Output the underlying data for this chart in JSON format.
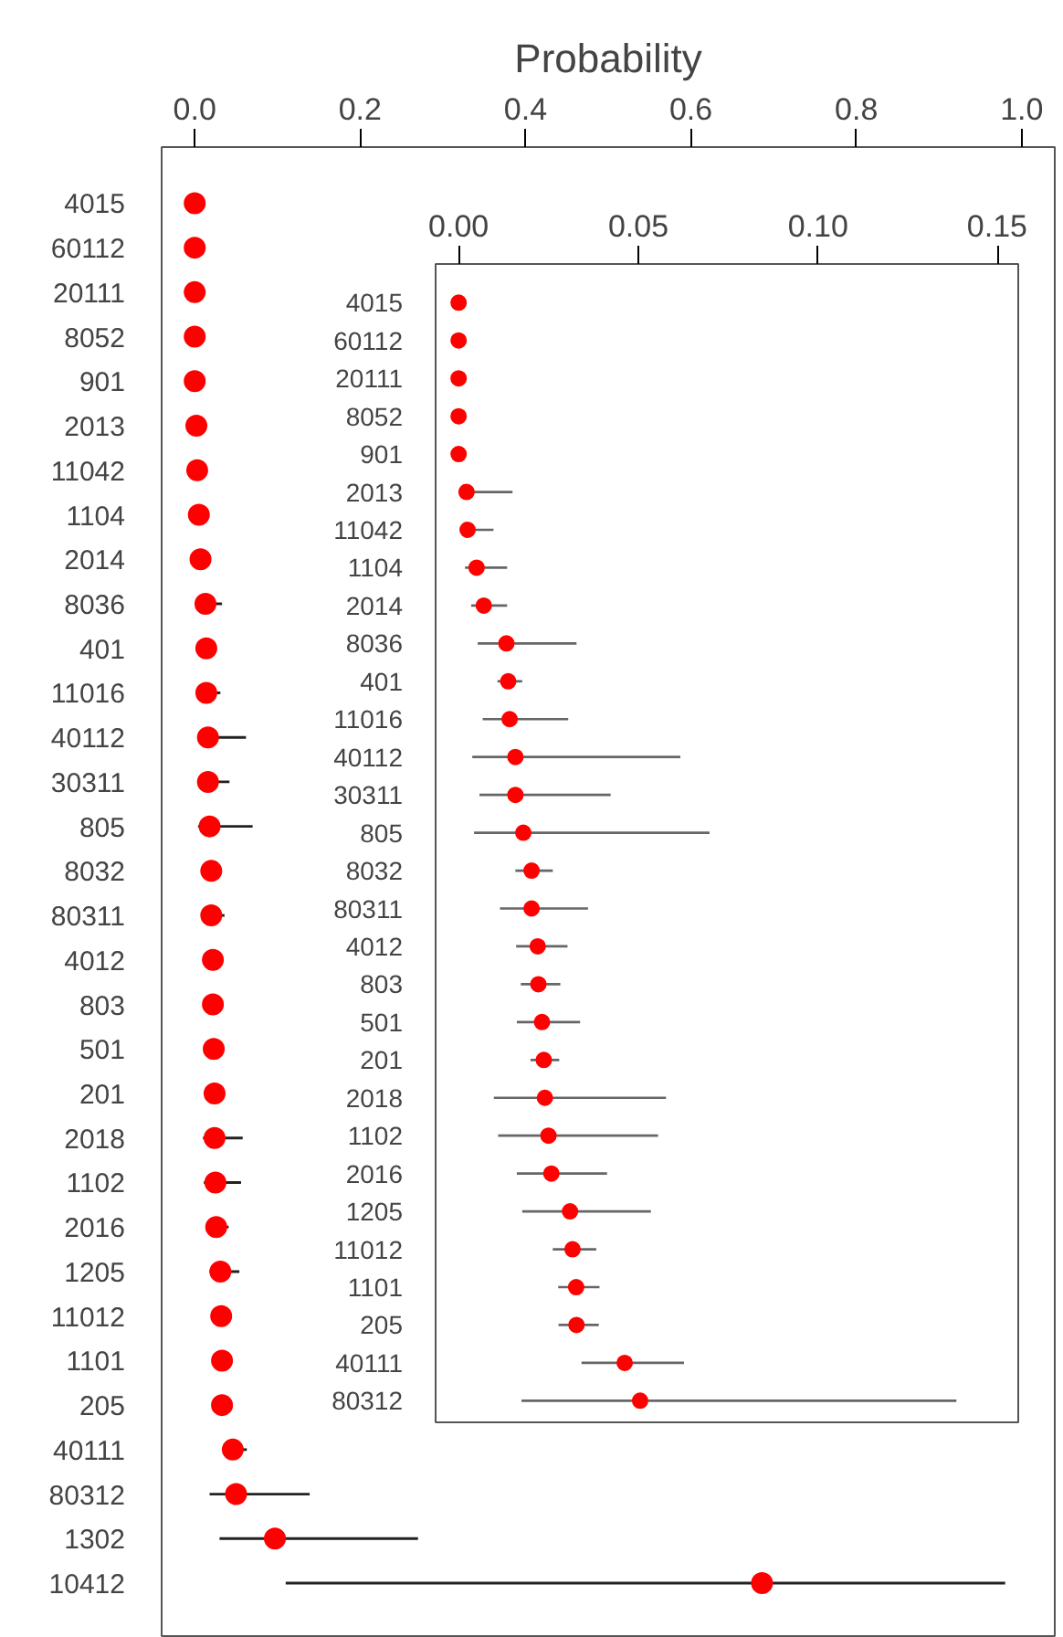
{
  "chart_data": [
    {
      "type": "scatter",
      "orientation": "horizontal",
      "xlabel": "Probability",
      "marker": "circle",
      "grid": false,
      "categories": [
        "4015",
        "60112",
        "20111",
        "8052",
        "901",
        "2013",
        "11042",
        "1104",
        "2014",
        "8036",
        "401",
        "11016",
        "40112",
        "30311",
        "805",
        "8032",
        "80311",
        "4012",
        "803",
        "501",
        "201",
        "2018",
        "1102",
        "2016",
        "1205",
        "11012",
        "1101",
        "205",
        "40111",
        "80312",
        "1302",
        "10412"
      ],
      "series": [
        {
          "color": "#ff0000",
          "values": [
            0,
            0,
            0,
            0,
            0,
            0.002,
            0.003,
            0.005,
            0.007,
            0.013,
            0.014,
            0.014,
            0.016,
            0.016,
            0.018,
            0.02,
            0.02,
            0.022,
            0.022,
            0.023,
            0.024,
            0.024,
            0.025,
            0.026,
            0.031,
            0.032,
            0.033,
            0.033,
            0.046,
            0.05,
            0.097,
            0.686
          ],
          "errors": [
            null,
            null,
            null,
            null,
            null,
            null,
            null,
            null,
            null,
            [
              0.005,
              0.033
            ],
            null,
            [
              0.007,
              0.031
            ],
            [
              0.004,
              0.062
            ],
            [
              0.006,
              0.042
            ],
            [
              0.004,
              0.07
            ],
            null,
            [
              0.012,
              0.036
            ],
            null,
            null,
            null,
            null,
            [
              0.01,
              0.058
            ],
            [
              0.011,
              0.056
            ],
            [
              0.016,
              0.041
            ],
            [
              0.018,
              0.054
            ],
            null,
            null,
            null,
            [
              0.034,
              0.063
            ],
            [
              0.018,
              0.139
            ],
            [
              0.03,
              0.27
            ],
            [
              0.11,
              0.98
            ]
          ]
        }
      ],
      "xlim": [
        -0.04,
        1.04
      ],
      "xticks": [
        {
          "value": 0,
          "label": "0.0"
        },
        {
          "value": 0.2,
          "label": "0.2"
        },
        {
          "value": 0.4,
          "label": "0.4"
        },
        {
          "value": 0.6,
          "label": "0.6"
        },
        {
          "value": 0.8,
          "label": "0.8"
        },
        {
          "value": 1,
          "label": "1.0"
        }
      ]
    },
    {
      "type": "scatter",
      "orientation": "horizontal",
      "marker": "circle",
      "grid": false,
      "categories": [
        "4015",
        "60112",
        "20111",
        "8052",
        "901",
        "2013",
        "11042",
        "1104",
        "2014",
        "8036",
        "401",
        "11016",
        "40112",
        "30311",
        "805",
        "8032",
        "80311",
        "4012",
        "803",
        "501",
        "201",
        "2018",
        "1102",
        "2016",
        "1205",
        "11012",
        "1101",
        "205",
        "40111",
        "80312"
      ],
      "series": [
        {
          "color": "#ff0000",
          "values": [
            0,
            0,
            0,
            0,
            0,
            0.0022,
            0.0025,
            0.005,
            0.007,
            0.0133,
            0.0138,
            0.0142,
            0.0158,
            0.0158,
            0.018,
            0.0203,
            0.0203,
            0.022,
            0.0222,
            0.0232,
            0.0237,
            0.024,
            0.025,
            0.0258,
            0.031,
            0.0317,
            0.0327,
            0.0328,
            0.0462,
            0.0505
          ],
          "errors": [
            null,
            null,
            null,
            null,
            null,
            [
              0.0005,
              0.015
            ],
            [
              0.0008,
              0.0097
            ],
            [
              0.0018,
              0.0135
            ],
            [
              0.0035,
              0.0135
            ],
            [
              0.0053,
              0.0328
            ],
            [
              0.0108,
              0.0177
            ],
            [
              0.0067,
              0.0305
            ],
            [
              0.0038,
              0.0617
            ],
            [
              0.0058,
              0.0423
            ],
            [
              0.0043,
              0.0698
            ],
            [
              0.0158,
              0.0262
            ],
            [
              0.0115,
              0.036
            ],
            [
              0.016,
              0.0303
            ],
            [
              0.0173,
              0.0283
            ],
            [
              0.0162,
              0.0338
            ],
            [
              0.02,
              0.028
            ],
            [
              0.0098,
              0.0577
            ],
            [
              0.011,
              0.0555
            ],
            [
              0.0162,
              0.0413
            ],
            [
              0.0177,
              0.0535
            ],
            [
              0.0262,
              0.0383
            ],
            [
              0.0277,
              0.0392
            ],
            [
              0.0278,
              0.039
            ],
            [
              0.0342,
              0.0627
            ],
            [
              0.0175,
              0.1385
            ]
          ]
        }
      ],
      "xlim": [
        -0.0064,
        0.1557
      ],
      "xticks": [
        {
          "value": 0,
          "label": "0.00"
        },
        {
          "value": 0.05,
          "label": "0.05"
        },
        {
          "value": 0.1,
          "label": "0.10"
        },
        {
          "value": 0.15,
          "label": "0.15"
        }
      ]
    }
  ]
}
